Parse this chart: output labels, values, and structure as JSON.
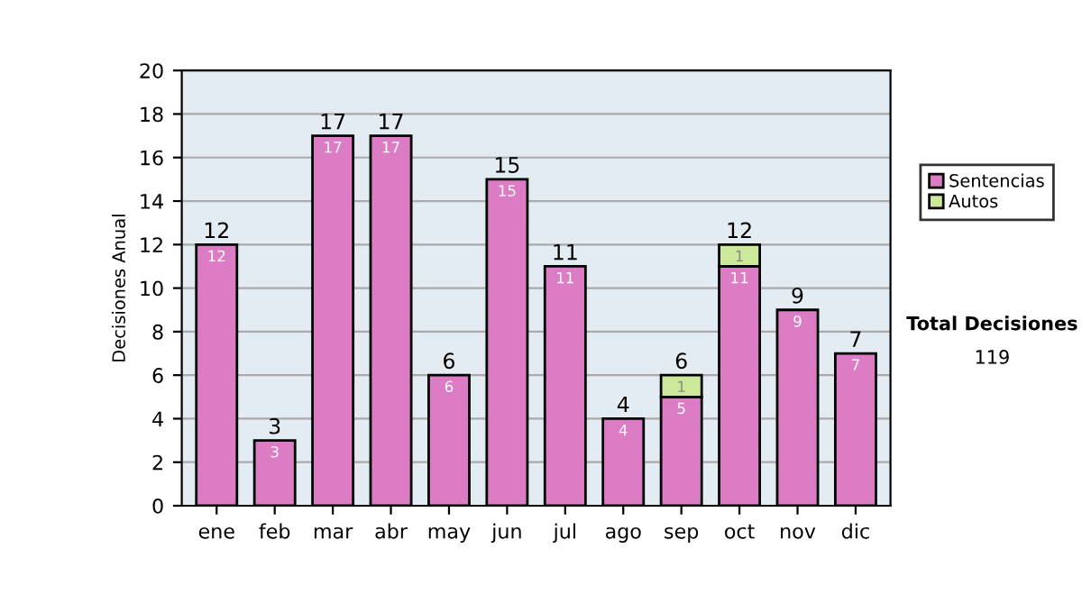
{
  "chart_data": {
    "type": "bar",
    "stacked": true,
    "ylabel": "Decisiones Anual",
    "categories": [
      "ene",
      "feb",
      "mar",
      "abr",
      "may",
      "jun",
      "jul",
      "ago",
      "sep",
      "oct",
      "nov",
      "dic"
    ],
    "series": [
      {
        "name": "Sentencias",
        "color": "#dc7cc4",
        "values": [
          12,
          3,
          17,
          17,
          6,
          15,
          11,
          4,
          5,
          11,
          9,
          7
        ],
        "value_labels": [
          "12",
          "3",
          "17",
          "17",
          "6",
          "15",
          "11",
          "4",
          "5",
          "11",
          "9",
          "7"
        ]
      },
      {
        "name": "Autos",
        "color": "#cce89a",
        "values": [
          null,
          null,
          null,
          null,
          null,
          null,
          null,
          null,
          1,
          1,
          null,
          null
        ],
        "value_labels": [
          null,
          null,
          null,
          null,
          null,
          null,
          null,
          null,
          "1",
          "1",
          null,
          null
        ]
      }
    ],
    "totals": [
      "12",
      "3",
      "17",
      "17",
      "6",
      "15",
      "11",
      "4",
      "6",
      "12",
      "9",
      "7"
    ],
    "ylim": [
      0,
      20
    ],
    "yticks": [
      0,
      2,
      4,
      6,
      8,
      10,
      12,
      14,
      16,
      18,
      20
    ],
    "grid": "y",
    "legend": "right",
    "annotations": [
      "Total Decisiones",
      "119"
    ]
  }
}
